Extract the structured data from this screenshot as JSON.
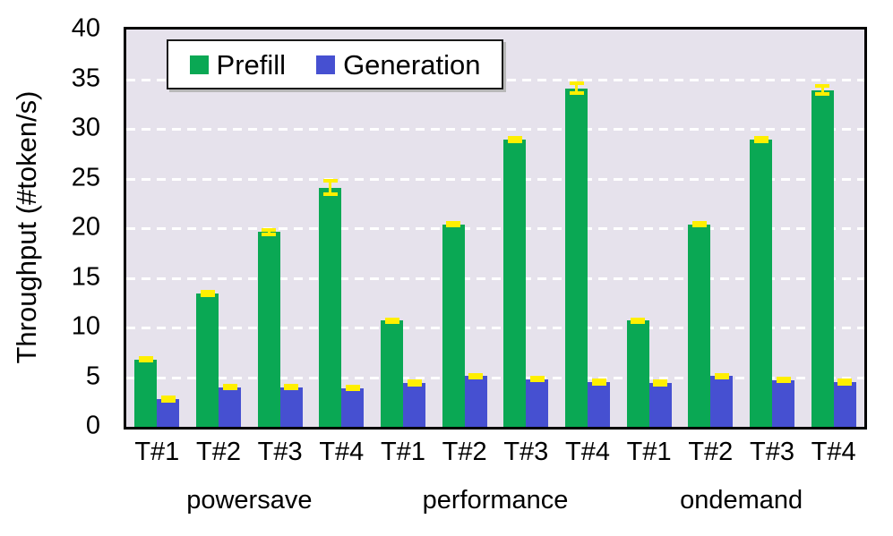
{
  "chart_data": {
    "type": "bar",
    "title": "",
    "xlabel": "",
    "ylabel": "Throughput (#token/s)",
    "ylim": [
      0,
      40
    ],
    "yticks": [
      0,
      5,
      10,
      15,
      20,
      25,
      30,
      35,
      40
    ],
    "grid": "horizontal dashed white lines on lavender panel",
    "legend_position": "top-left inside plot",
    "groups": [
      {
        "label": "powersave",
        "clusters": [
          0,
          1,
          2,
          3
        ]
      },
      {
        "label": "performance",
        "clusters": [
          4,
          5,
          6,
          7
        ]
      },
      {
        "label": "ondemand",
        "clusters": [
          8,
          9,
          10,
          11
        ]
      }
    ],
    "categories": [
      "T#1",
      "T#2",
      "T#3",
      "T#4",
      "T#1",
      "T#2",
      "T#3",
      "T#4",
      "T#1",
      "T#2",
      "T#3",
      "T#4"
    ],
    "series": [
      {
        "name": "Prefill",
        "color": "#0aa854",
        "values": [
          6.8,
          13.4,
          19.6,
          24.1,
          10.7,
          20.4,
          28.9,
          34.1,
          10.7,
          20.4,
          28.9,
          33.9
        ],
        "errors": [
          0.15,
          0.2,
          0.2,
          0.7,
          0.15,
          0.15,
          0.2,
          0.5,
          0.15,
          0.15,
          0.2,
          0.4
        ]
      },
      {
        "name": "Generation",
        "color": "#4650d1",
        "values": [
          2.8,
          4.0,
          4.0,
          3.9,
          4.4,
          5.1,
          4.8,
          4.5,
          4.4,
          5.1,
          4.7,
          4.5
        ],
        "errors": [
          0.15,
          0.15,
          0.15,
          0.15,
          0.15,
          0.15,
          0.15,
          0.15,
          0.15,
          0.15,
          0.15,
          0.15
        ]
      }
    ],
    "error_bar_color": "#ffef00",
    "panel_background": "#e6e2ec",
    "frame_color": "#000000"
  }
}
